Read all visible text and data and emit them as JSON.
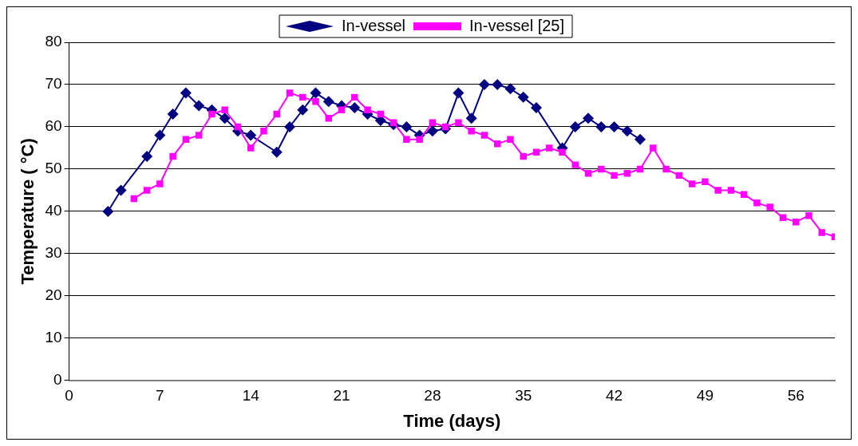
{
  "chart_data": {
    "type": "line",
    "xlabel": "Time (days)",
    "ylabel": "Temperature ( °C)",
    "xlim": [
      0,
      59
    ],
    "xticks": [
      0,
      7,
      14,
      21,
      28,
      35,
      42,
      49,
      56
    ],
    "ylim": [
      0,
      80
    ],
    "yticks": [
      0,
      10,
      20,
      30,
      40,
      50,
      60,
      70,
      80
    ],
    "grid": "y",
    "legend": "top",
    "line_style": "solid",
    "series": [
      {
        "name": "In-vessel",
        "color": "#000080",
        "marker": "diamond",
        "x": [
          3,
          4,
          6,
          7,
          8,
          9,
          10,
          11,
          12,
          13,
          14,
          16,
          17,
          18,
          19,
          20,
          21,
          22,
          23,
          24,
          25,
          26,
          27,
          28,
          29,
          30,
          31,
          32,
          33,
          34,
          35,
          36,
          38,
          39,
          40,
          41,
          42,
          43,
          44
        ],
        "values": [
          40,
          45,
          53,
          58,
          63,
          68,
          65,
          64,
          62,
          59,
          58,
          54,
          60,
          64,
          68,
          66,
          65,
          64.5,
          63,
          61.5,
          60.5,
          60,
          58,
          59,
          59.5,
          68,
          62,
          70,
          70,
          69,
          67,
          64.5,
          55,
          60,
          62,
          60,
          60,
          59,
          57
        ]
      },
      {
        "name": "In-vessel [25]",
        "color": "#ff00ff",
        "marker": "square",
        "x": [
          5,
          6,
          7,
          8,
          9,
          10,
          11,
          12,
          13,
          14,
          15,
          16,
          17,
          18,
          19,
          20,
          21,
          22,
          23,
          24,
          25,
          26,
          27,
          28,
          29,
          30,
          31,
          32,
          33,
          34,
          35,
          36,
          37,
          38,
          39,
          40,
          41,
          42,
          43,
          44,
          45,
          46,
          47,
          48,
          49,
          50,
          51,
          52,
          53,
          54,
          55,
          56,
          57,
          58,
          59
        ],
        "values": [
          43,
          45,
          46.5,
          53,
          57,
          58,
          63,
          64,
          60,
          55,
          59,
          63,
          68,
          67,
          66,
          62,
          64,
          67,
          64,
          63,
          61,
          57,
          57,
          61,
          60,
          61,
          59,
          58,
          56,
          57,
          53,
          54,
          55,
          54,
          51,
          49,
          50,
          48.5,
          49,
          50,
          55,
          50,
          48.5,
          46.5,
          47,
          45,
          45,
          44,
          42,
          41,
          38.5,
          37.5,
          39,
          35,
          34
        ]
      }
    ]
  }
}
